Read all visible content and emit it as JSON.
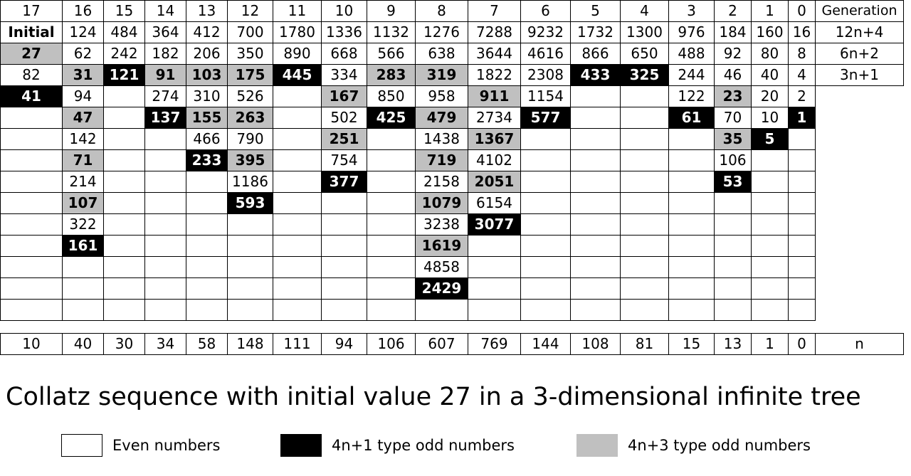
{
  "header": {
    "cols": [
      "17",
      "16",
      "15",
      "14",
      "13",
      "12",
      "11",
      "10",
      "9",
      "8",
      "7",
      "6",
      "5",
      "4",
      "3",
      "2",
      "1",
      "0"
    ],
    "generation_label": "Generation"
  },
  "rows": [
    {
      "label": "12n+4",
      "cells": [
        {
          "v": "Initial",
          "t": "b"
        },
        {
          "v": "124",
          "t": "e"
        },
        {
          "v": "484",
          "t": "e"
        },
        {
          "v": "364",
          "t": "e"
        },
        {
          "v": "412",
          "t": "e"
        },
        {
          "v": "700",
          "t": "e"
        },
        {
          "v": "1780",
          "t": "e"
        },
        {
          "v": "1336",
          "t": "e"
        },
        {
          "v": "1132",
          "t": "e"
        },
        {
          "v": "1276",
          "t": "e"
        },
        {
          "v": "7288",
          "t": "e"
        },
        {
          "v": "9232",
          "t": "e"
        },
        {
          "v": "1732",
          "t": "e"
        },
        {
          "v": "1300",
          "t": "e"
        },
        {
          "v": "976",
          "t": "e"
        },
        {
          "v": "184",
          "t": "e"
        },
        {
          "v": "160",
          "t": "e"
        },
        {
          "v": "16",
          "t": "e"
        }
      ]
    },
    {
      "label": "6n+2",
      "cells": [
        {
          "v": "27",
          "t": "g"
        },
        {
          "v": "62",
          "t": "e"
        },
        {
          "v": "242",
          "t": "e"
        },
        {
          "v": "182",
          "t": "e"
        },
        {
          "v": "206",
          "t": "e"
        },
        {
          "v": "350",
          "t": "e"
        },
        {
          "v": "890",
          "t": "e"
        },
        {
          "v": "668",
          "t": "e"
        },
        {
          "v": "566",
          "t": "e"
        },
        {
          "v": "638",
          "t": "e"
        },
        {
          "v": "3644",
          "t": "e"
        },
        {
          "v": "4616",
          "t": "e"
        },
        {
          "v": "866",
          "t": "e"
        },
        {
          "v": "650",
          "t": "e"
        },
        {
          "v": "488",
          "t": "e"
        },
        {
          "v": "92",
          "t": "e"
        },
        {
          "v": "80",
          "t": "e"
        },
        {
          "v": "8",
          "t": "e"
        }
      ]
    },
    {
      "label": "3n+1",
      "cells": [
        {
          "v": "82",
          "t": "e"
        },
        {
          "v": "31",
          "t": "g"
        },
        {
          "v": "121",
          "t": "k"
        },
        {
          "v": "91",
          "t": "g"
        },
        {
          "v": "103",
          "t": "g"
        },
        {
          "v": "175",
          "t": "g"
        },
        {
          "v": "445",
          "t": "k"
        },
        {
          "v": "334",
          "t": "e"
        },
        {
          "v": "283",
          "t": "g"
        },
        {
          "v": "319",
          "t": "g"
        },
        {
          "v": "1822",
          "t": "e"
        },
        {
          "v": "2308",
          "t": "e"
        },
        {
          "v": "433",
          "t": "k"
        },
        {
          "v": "325",
          "t": "k"
        },
        {
          "v": "244",
          "t": "e"
        },
        {
          "v": "46",
          "t": "e"
        },
        {
          "v": "40",
          "t": "e"
        },
        {
          "v": "4",
          "t": "e"
        }
      ]
    },
    {
      "label": "",
      "cells": [
        {
          "v": "41",
          "t": "k"
        },
        {
          "v": "94",
          "t": "e"
        },
        {
          "v": "",
          "t": "e"
        },
        {
          "v": "274",
          "t": "e"
        },
        {
          "v": "310",
          "t": "e"
        },
        {
          "v": "526",
          "t": "e"
        },
        {
          "v": "",
          "t": "e"
        },
        {
          "v": "167",
          "t": "g"
        },
        {
          "v": "850",
          "t": "e"
        },
        {
          "v": "958",
          "t": "e"
        },
        {
          "v": "911",
          "t": "g"
        },
        {
          "v": "1154",
          "t": "e"
        },
        {
          "v": "",
          "t": "e"
        },
        {
          "v": "",
          "t": "e"
        },
        {
          "v": "122",
          "t": "e"
        },
        {
          "v": "23",
          "t": "g"
        },
        {
          "v": "20",
          "t": "e"
        },
        {
          "v": "2",
          "t": "e"
        }
      ]
    },
    {
      "label": "",
      "cells": [
        {
          "v": "",
          "t": "e"
        },
        {
          "v": "47",
          "t": "g"
        },
        {
          "v": "",
          "t": "e"
        },
        {
          "v": "137",
          "t": "k"
        },
        {
          "v": "155",
          "t": "g"
        },
        {
          "v": "263",
          "t": "g"
        },
        {
          "v": "",
          "t": "e"
        },
        {
          "v": "502",
          "t": "e"
        },
        {
          "v": "425",
          "t": "k"
        },
        {
          "v": "479",
          "t": "g"
        },
        {
          "v": "2734",
          "t": "e"
        },
        {
          "v": "577",
          "t": "k"
        },
        {
          "v": "",
          "t": "e"
        },
        {
          "v": "",
          "t": "e"
        },
        {
          "v": "61",
          "t": "k"
        },
        {
          "v": "70",
          "t": "e"
        },
        {
          "v": "10",
          "t": "e"
        },
        {
          "v": "1",
          "t": "k"
        }
      ]
    },
    {
      "label": "",
      "cells": [
        {
          "v": "",
          "t": "e"
        },
        {
          "v": "142",
          "t": "e"
        },
        {
          "v": "",
          "t": "e"
        },
        {
          "v": "",
          "t": "e"
        },
        {
          "v": "466",
          "t": "e"
        },
        {
          "v": "790",
          "t": "e"
        },
        {
          "v": "",
          "t": "e"
        },
        {
          "v": "251",
          "t": "g"
        },
        {
          "v": "",
          "t": "e"
        },
        {
          "v": "1438",
          "t": "e"
        },
        {
          "v": "1367",
          "t": "g"
        },
        {
          "v": "",
          "t": "e"
        },
        {
          "v": "",
          "t": "e"
        },
        {
          "v": "",
          "t": "e"
        },
        {
          "v": "",
          "t": "e"
        },
        {
          "v": "35",
          "t": "g"
        },
        {
          "v": "5",
          "t": "k"
        },
        {
          "v": "",
          "t": "e"
        }
      ]
    },
    {
      "label": "",
      "cells": [
        {
          "v": "",
          "t": "e"
        },
        {
          "v": "71",
          "t": "g"
        },
        {
          "v": "",
          "t": "e"
        },
        {
          "v": "",
          "t": "e"
        },
        {
          "v": "233",
          "t": "k"
        },
        {
          "v": "395",
          "t": "g"
        },
        {
          "v": "",
          "t": "e"
        },
        {
          "v": "754",
          "t": "e"
        },
        {
          "v": "",
          "t": "e"
        },
        {
          "v": "719",
          "t": "g"
        },
        {
          "v": "4102",
          "t": "e"
        },
        {
          "v": "",
          "t": "e"
        },
        {
          "v": "",
          "t": "e"
        },
        {
          "v": "",
          "t": "e"
        },
        {
          "v": "",
          "t": "e"
        },
        {
          "v": "106",
          "t": "e"
        },
        {
          "v": "",
          "t": "e"
        },
        {
          "v": "",
          "t": "e"
        }
      ]
    },
    {
      "label": "",
      "cells": [
        {
          "v": "",
          "t": "e"
        },
        {
          "v": "214",
          "t": "e"
        },
        {
          "v": "",
          "t": "e"
        },
        {
          "v": "",
          "t": "e"
        },
        {
          "v": "",
          "t": "e"
        },
        {
          "v": "1186",
          "t": "e"
        },
        {
          "v": "",
          "t": "e"
        },
        {
          "v": "377",
          "t": "k"
        },
        {
          "v": "",
          "t": "e"
        },
        {
          "v": "2158",
          "t": "e"
        },
        {
          "v": "2051",
          "t": "g"
        },
        {
          "v": "",
          "t": "e"
        },
        {
          "v": "",
          "t": "e"
        },
        {
          "v": "",
          "t": "e"
        },
        {
          "v": "",
          "t": "e"
        },
        {
          "v": "53",
          "t": "k"
        },
        {
          "v": "",
          "t": "e"
        },
        {
          "v": "",
          "t": "e"
        }
      ]
    },
    {
      "label": "",
      "cells": [
        {
          "v": "",
          "t": "e"
        },
        {
          "v": "107",
          "t": "g"
        },
        {
          "v": "",
          "t": "e"
        },
        {
          "v": "",
          "t": "e"
        },
        {
          "v": "",
          "t": "e"
        },
        {
          "v": "593",
          "t": "k"
        },
        {
          "v": "",
          "t": "e"
        },
        {
          "v": "",
          "t": "e"
        },
        {
          "v": "",
          "t": "e"
        },
        {
          "v": "1079",
          "t": "g"
        },
        {
          "v": "6154",
          "t": "e"
        },
        {
          "v": "",
          "t": "e"
        },
        {
          "v": "",
          "t": "e"
        },
        {
          "v": "",
          "t": "e"
        },
        {
          "v": "",
          "t": "e"
        },
        {
          "v": "",
          "t": "e"
        },
        {
          "v": "",
          "t": "e"
        },
        {
          "v": "",
          "t": "e"
        }
      ]
    },
    {
      "label": "",
      "cells": [
        {
          "v": "",
          "t": "e"
        },
        {
          "v": "322",
          "t": "e"
        },
        {
          "v": "",
          "t": "e"
        },
        {
          "v": "",
          "t": "e"
        },
        {
          "v": "",
          "t": "e"
        },
        {
          "v": "",
          "t": "e"
        },
        {
          "v": "",
          "t": "e"
        },
        {
          "v": "",
          "t": "e"
        },
        {
          "v": "",
          "t": "e"
        },
        {
          "v": "3238",
          "t": "e"
        },
        {
          "v": "3077",
          "t": "k"
        },
        {
          "v": "",
          "t": "e"
        },
        {
          "v": "",
          "t": "e"
        },
        {
          "v": "",
          "t": "e"
        },
        {
          "v": "",
          "t": "e"
        },
        {
          "v": "",
          "t": "e"
        },
        {
          "v": "",
          "t": "e"
        },
        {
          "v": "",
          "t": "e"
        }
      ]
    },
    {
      "label": "",
      "cells": [
        {
          "v": "",
          "t": "e"
        },
        {
          "v": "161",
          "t": "k"
        },
        {
          "v": "",
          "t": "e"
        },
        {
          "v": "",
          "t": "e"
        },
        {
          "v": "",
          "t": "e"
        },
        {
          "v": "",
          "t": "e"
        },
        {
          "v": "",
          "t": "e"
        },
        {
          "v": "",
          "t": "e"
        },
        {
          "v": "",
          "t": "e"
        },
        {
          "v": "1619",
          "t": "g"
        },
        {
          "v": "",
          "t": "e"
        },
        {
          "v": "",
          "t": "e"
        },
        {
          "v": "",
          "t": "e"
        },
        {
          "v": "",
          "t": "e"
        },
        {
          "v": "",
          "t": "e"
        },
        {
          "v": "",
          "t": "e"
        },
        {
          "v": "",
          "t": "e"
        },
        {
          "v": "",
          "t": "e"
        }
      ]
    },
    {
      "label": "",
      "cells": [
        {
          "v": "",
          "t": "e"
        },
        {
          "v": "",
          "t": "e"
        },
        {
          "v": "",
          "t": "e"
        },
        {
          "v": "",
          "t": "e"
        },
        {
          "v": "",
          "t": "e"
        },
        {
          "v": "",
          "t": "e"
        },
        {
          "v": "",
          "t": "e"
        },
        {
          "v": "",
          "t": "e"
        },
        {
          "v": "",
          "t": "e"
        },
        {
          "v": "4858",
          "t": "e"
        },
        {
          "v": "",
          "t": "e"
        },
        {
          "v": "",
          "t": "e"
        },
        {
          "v": "",
          "t": "e"
        },
        {
          "v": "",
          "t": "e"
        },
        {
          "v": "",
          "t": "e"
        },
        {
          "v": "",
          "t": "e"
        },
        {
          "v": "",
          "t": "e"
        },
        {
          "v": "",
          "t": "e"
        }
      ]
    },
    {
      "label": "",
      "cells": [
        {
          "v": "",
          "t": "e"
        },
        {
          "v": "",
          "t": "e"
        },
        {
          "v": "",
          "t": "e"
        },
        {
          "v": "",
          "t": "e"
        },
        {
          "v": "",
          "t": "e"
        },
        {
          "v": "",
          "t": "e"
        },
        {
          "v": "",
          "t": "e"
        },
        {
          "v": "",
          "t": "e"
        },
        {
          "v": "",
          "t": "e"
        },
        {
          "v": "2429",
          "t": "k"
        },
        {
          "v": "",
          "t": "e"
        },
        {
          "v": "",
          "t": "e"
        },
        {
          "v": "",
          "t": "e"
        },
        {
          "v": "",
          "t": "e"
        },
        {
          "v": "",
          "t": "e"
        },
        {
          "v": "",
          "t": "e"
        },
        {
          "v": "",
          "t": "e"
        },
        {
          "v": "",
          "t": "e"
        }
      ]
    },
    {
      "label": "",
      "cells": [
        {
          "v": "",
          "t": "e"
        },
        {
          "v": "",
          "t": "e"
        },
        {
          "v": "",
          "t": "e"
        },
        {
          "v": "",
          "t": "e"
        },
        {
          "v": "",
          "t": "e"
        },
        {
          "v": "",
          "t": "e"
        },
        {
          "v": "",
          "t": "e"
        },
        {
          "v": "",
          "t": "e"
        },
        {
          "v": "",
          "t": "e"
        },
        {
          "v": "",
          "t": "e"
        },
        {
          "v": "",
          "t": "e"
        },
        {
          "v": "",
          "t": "e"
        },
        {
          "v": "",
          "t": "e"
        },
        {
          "v": "",
          "t": "e"
        },
        {
          "v": "",
          "t": "e"
        },
        {
          "v": "",
          "t": "e"
        },
        {
          "v": "",
          "t": "e"
        },
        {
          "v": "",
          "t": "e"
        }
      ]
    }
  ],
  "footer": {
    "values": [
      "10",
      "40",
      "30",
      "34",
      "58",
      "148",
      "111",
      "94",
      "106",
      "607",
      "769",
      "144",
      "108",
      "81",
      "15",
      "13",
      "1",
      "0"
    ],
    "label": "n"
  },
  "caption": "Collatz sequence with initial value 27 in a 3-dimensional infinite tree",
  "legend": [
    {
      "swatch": "#ffffff",
      "label": "Even numbers"
    },
    {
      "swatch": "#000000",
      "label": "4n+1 type odd numbers"
    },
    {
      "swatch": "#c0c0c0",
      "label": "4n+3 type odd numbers"
    }
  ]
}
